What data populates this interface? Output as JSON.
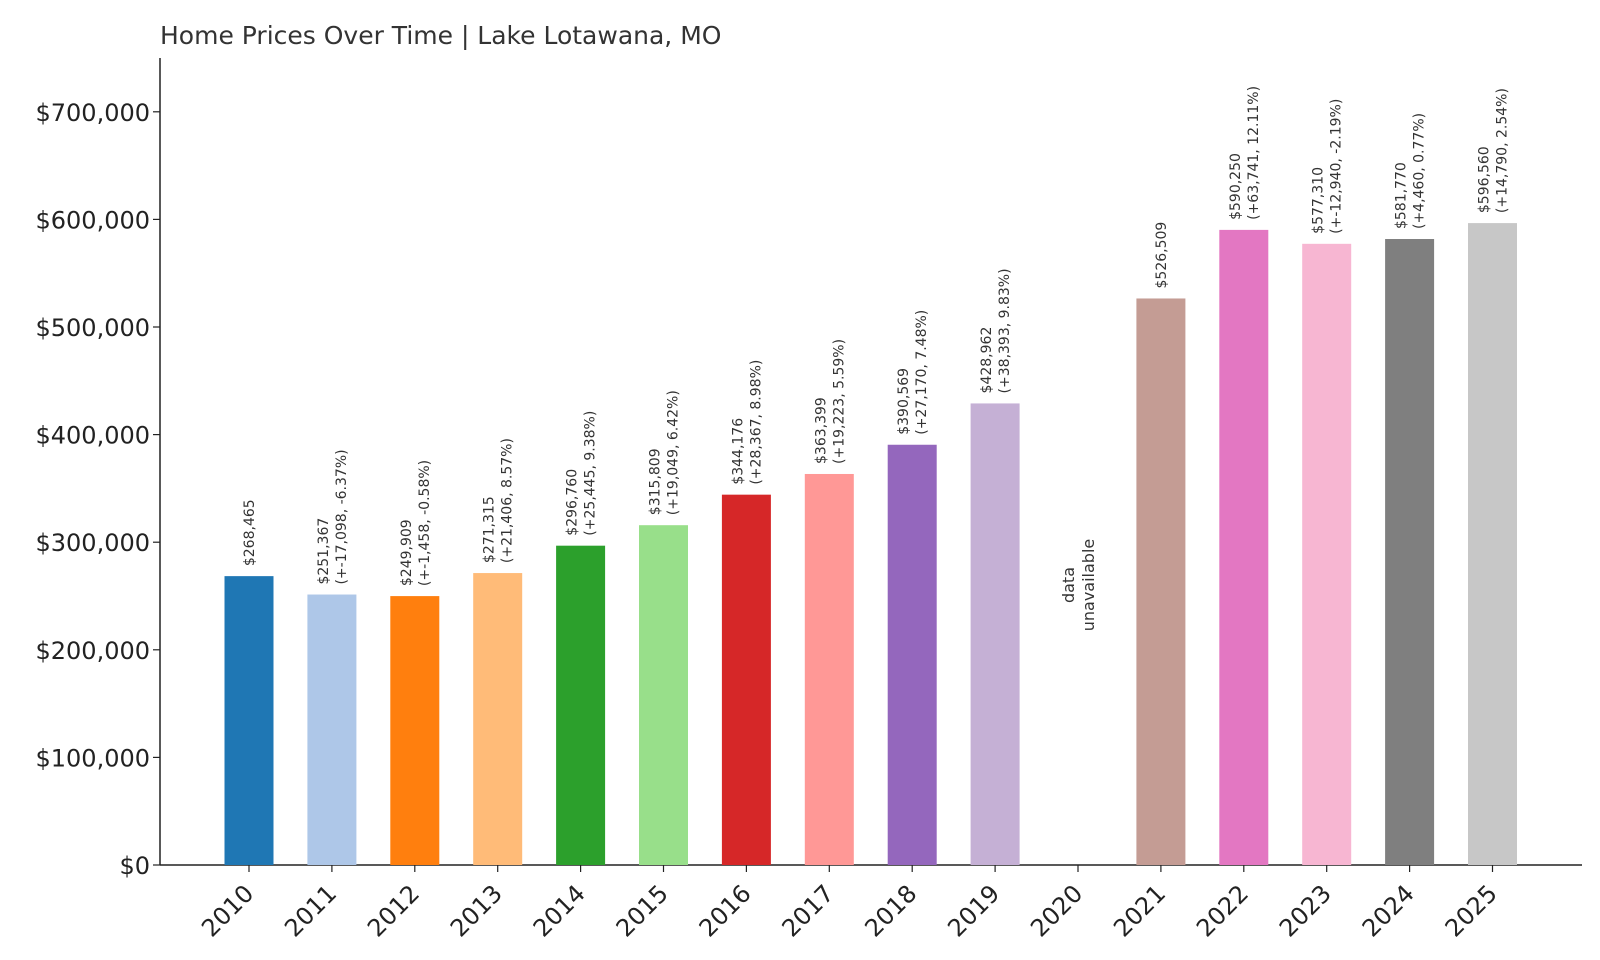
{
  "chart_data": {
    "type": "bar",
    "title": "Home Prices Over Time | Lake Lotawana, MO",
    "xlabel": "",
    "ylabel": "",
    "ylim": [
      0,
      750000
    ],
    "yticks": [
      {
        "value": 0,
        "label": "$0"
      },
      {
        "value": 100000,
        "label": "$100,000"
      },
      {
        "value": 200000,
        "label": "$200,000"
      },
      {
        "value": 300000,
        "label": "$300,000"
      },
      {
        "value": 400000,
        "label": "$400,000"
      },
      {
        "value": 500000,
        "label": "$500,000"
      },
      {
        "value": 600000,
        "label": "$600,000"
      },
      {
        "value": 700000,
        "label": "$700,000"
      }
    ],
    "grid": false,
    "legend": "none",
    "categories": [
      "2010",
      "2011",
      "2012",
      "2013",
      "2014",
      "2015",
      "2016",
      "2017",
      "2018",
      "2019",
      "2020",
      "2021",
      "2022",
      "2023",
      "2024",
      "2025"
    ],
    "values": [
      268465,
      251367,
      249909,
      271315,
      296760,
      315809,
      344176,
      363399,
      390569,
      428962,
      null,
      526509,
      590250,
      577310,
      581770,
      596560
    ],
    "colors": [
      "#1f77b4",
      "#aec7e8",
      "#ff7f0e",
      "#ffbb78",
      "#2ca02c",
      "#98df8a",
      "#d62728",
      "#ff9896",
      "#9467bd",
      "#c5b0d5",
      "#8c564b",
      "#c49c94",
      "#e377c2",
      "#f7b6d2",
      "#7f7f7f",
      "#c7c7c7"
    ],
    "labels": [
      [
        "$268,465"
      ],
      [
        "$251,367",
        "(+-17,098, -6.37%)"
      ],
      [
        "$249,909",
        "(+-1,458, -0.58%)"
      ],
      [
        "$271,315",
        "(+21,406, 8.57%)"
      ],
      [
        "$296,760",
        "(+25,445, 9.38%)"
      ],
      [
        "$315,809",
        "(+19,049, 6.42%)"
      ],
      [
        "$344,176",
        "(+28,367, 8.98%)"
      ],
      [
        "$363,399",
        "(+19,223, 5.59%)"
      ],
      [
        "$390,569",
        "(+27,170, 7.48%)"
      ],
      [
        "$428,962",
        "(+38,393, 9.83%)"
      ],
      [
        "data",
        "unavailable"
      ],
      [
        "$526,509"
      ],
      [
        "$590,250",
        "(+63,741, 12.11%)"
      ],
      [
        "$577,310",
        "(+-12,940, -2.19%)"
      ],
      [
        "$581,770",
        "(+4,460, 0.77%)"
      ],
      [
        "$596,560",
        "(+14,790, 2.54%)"
      ]
    ]
  }
}
